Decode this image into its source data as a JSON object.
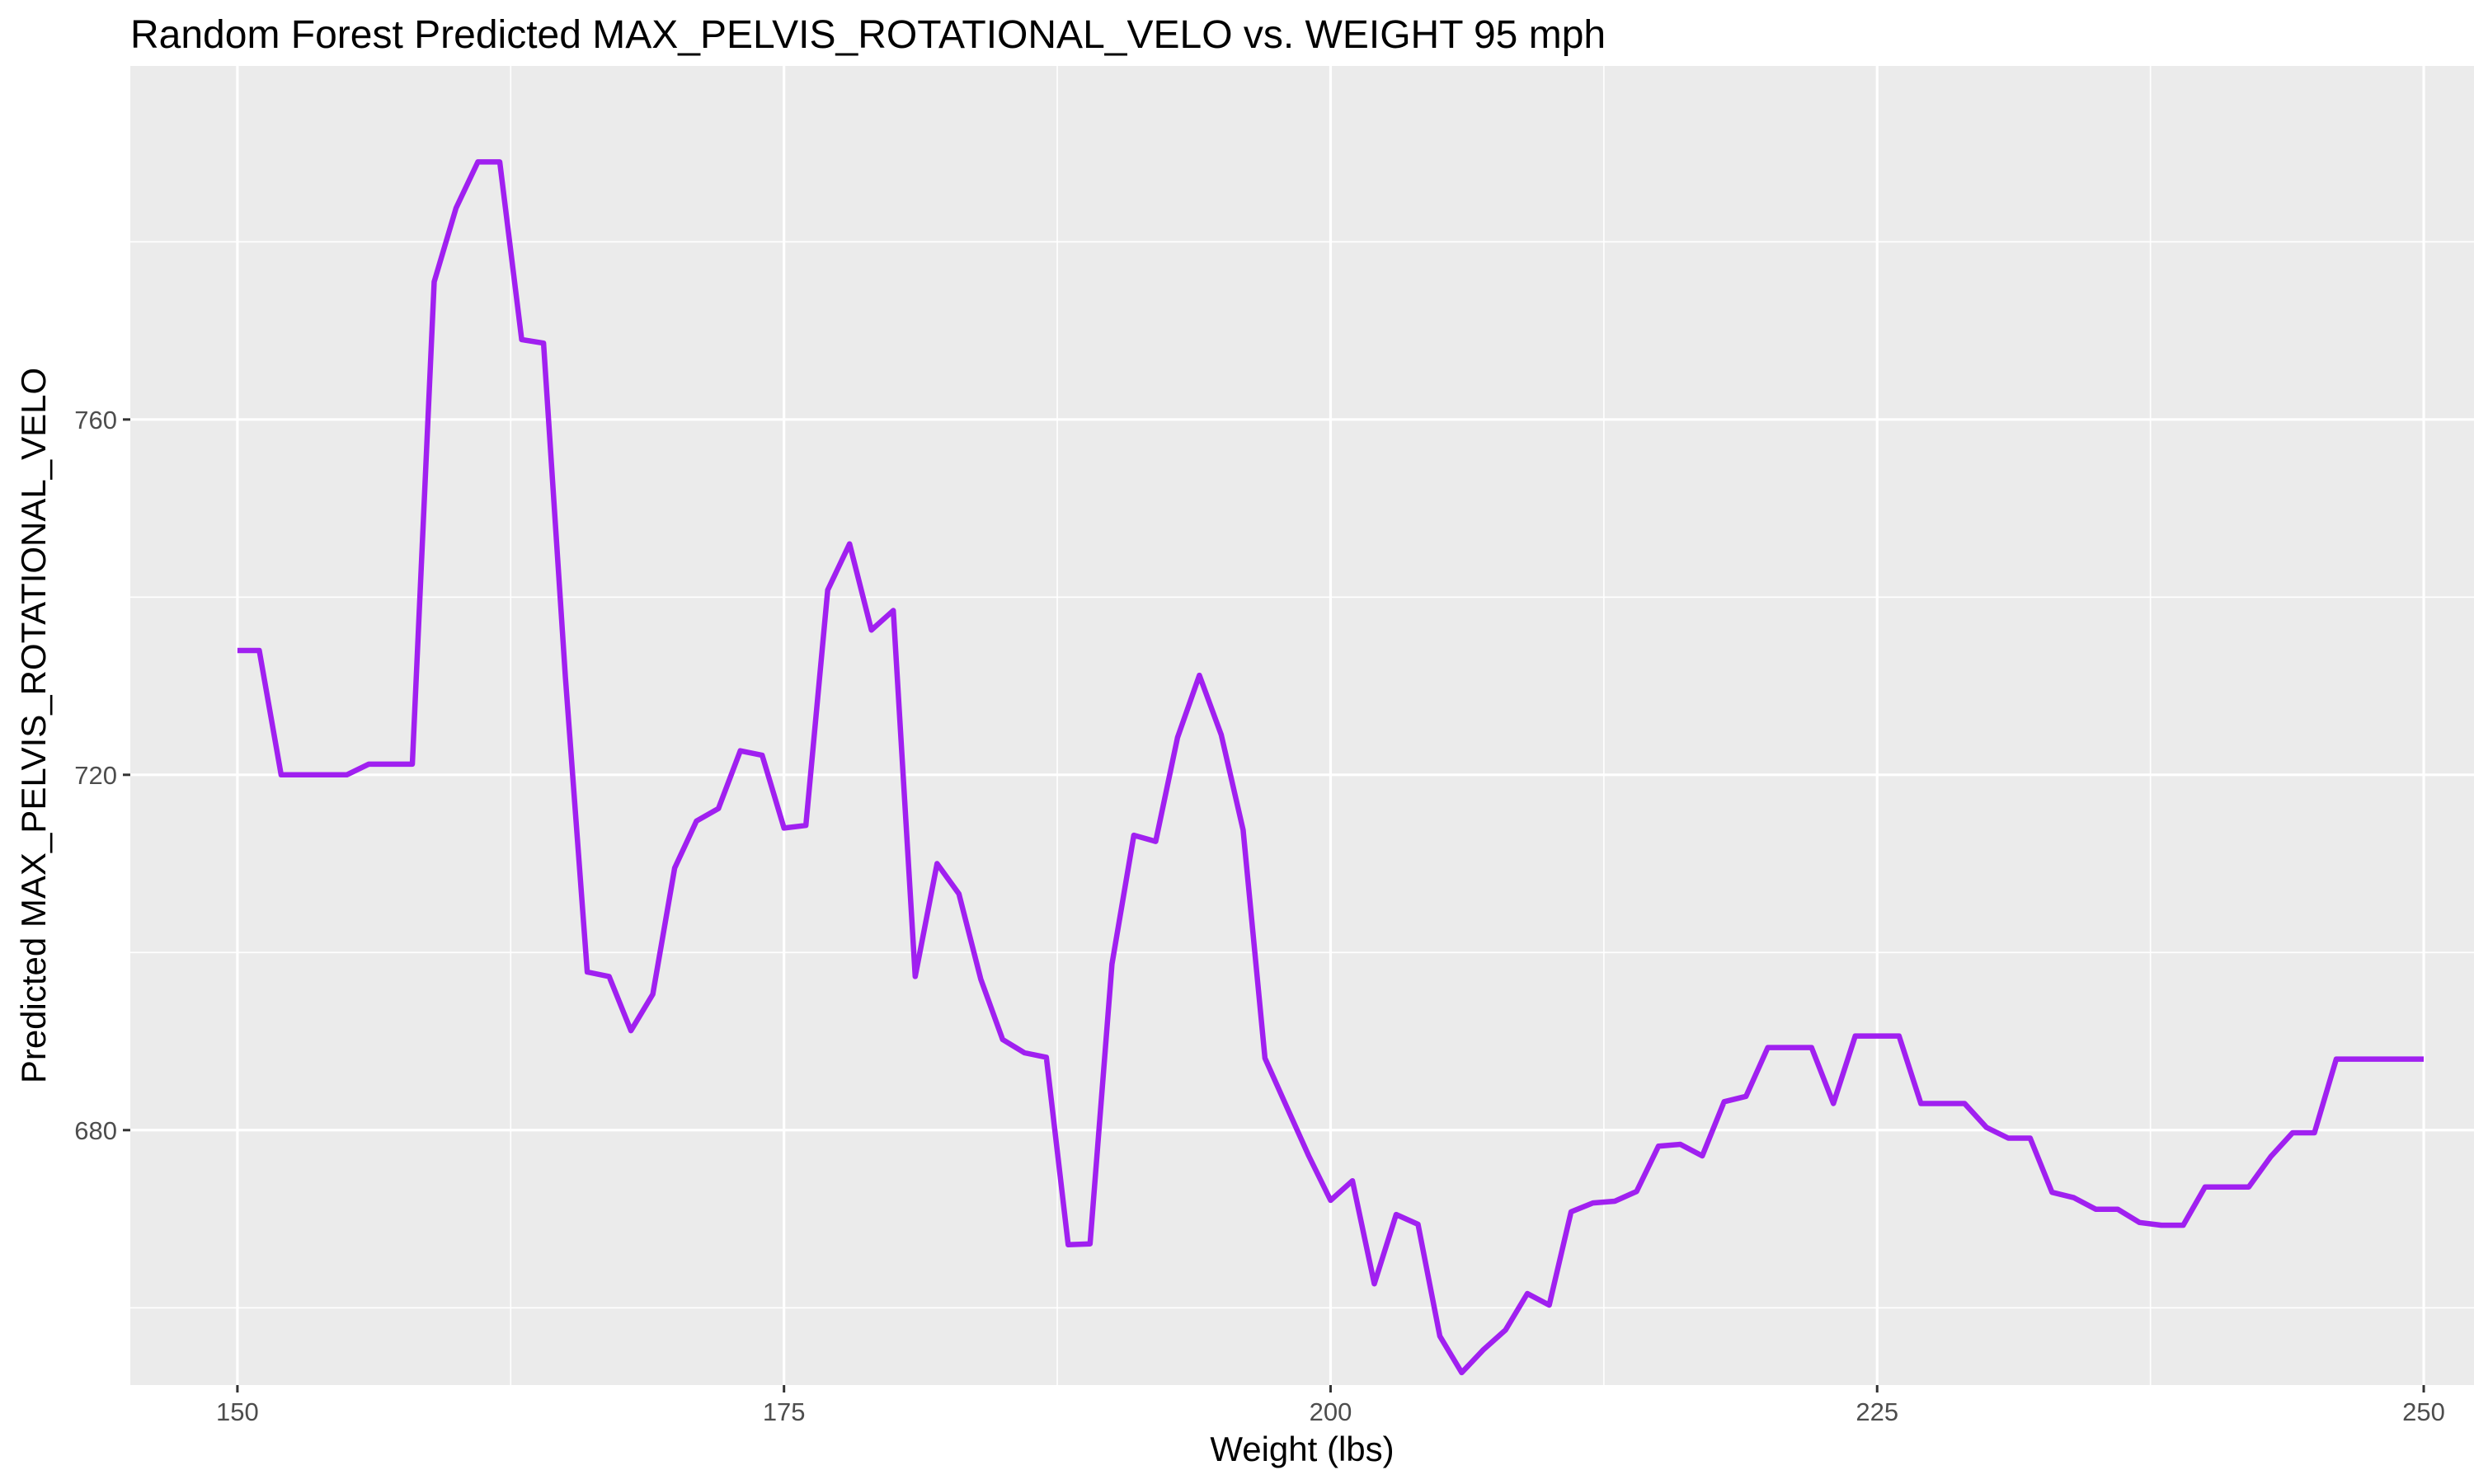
{
  "chart_data": {
    "type": "line",
    "title": "Random Forest Predicted MAX_PELVIS_ROTATIONAL_VELO vs. WEIGHT 95 mph",
    "xlabel": "Weight (lbs)",
    "ylabel": "Predicted MAX_PELVIS_ROTATIONAL_VELO",
    "xlim": [
      145.1,
      252.3
    ],
    "ylim": [
      651.3,
      799.8
    ],
    "x_ticks": [
      150,
      175,
      200,
      225,
      250
    ],
    "y_ticks": [
      680,
      720,
      760
    ],
    "grid": true,
    "legend": "none",
    "colors": {
      "panel_background": "#EBEBEB",
      "grid": "#FFFFFF",
      "line": "#A020F0",
      "tick_label": "#4D4D4D",
      "tick": "#333333",
      "text": "#000000"
    },
    "series": [
      {
        "x": [
          150,
          151,
          152,
          153,
          154,
          155,
          156,
          157,
          158,
          159,
          160,
          161,
          162,
          163,
          164,
          165,
          166,
          167,
          168,
          169,
          170,
          171,
          172,
          173,
          174,
          175,
          176,
          177,
          178,
          179,
          180,
          181,
          182,
          183,
          184,
          185,
          186,
          187,
          188,
          189,
          190,
          191,
          192,
          193,
          194,
          195,
          196,
          197,
          198,
          199,
          200,
          201,
          202,
          203,
          204,
          205,
          206,
          207,
          208,
          209,
          210,
          211,
          212,
          213,
          214,
          215,
          216,
          217,
          218,
          219,
          220,
          221,
          222,
          223,
          224,
          225,
          226,
          227,
          228,
          229,
          230,
          231,
          232,
          233,
          234,
          235,
          236,
          237,
          238,
          239,
          240,
          241,
          242,
          243,
          244,
          245,
          246,
          247,
          248,
          249,
          250
        ],
        "y": [
          734.0,
          734.0,
          720.0,
          720.0,
          720.0,
          720.0,
          721.2,
          721.2,
          721.2,
          775.5,
          783.8,
          789.0,
          789.0,
          769.0,
          768.6,
          731.0,
          697.8,
          697.3,
          691.2,
          695.3,
          709.5,
          714.8,
          716.2,
          722.7,
          722.2,
          714.0,
          714.3,
          740.8,
          746.0,
          736.3,
          738.5,
          697.3,
          710.0,
          706.6,
          697.0,
          690.2,
          688.7,
          688.2,
          667.1,
          667.2,
          698.7,
          713.2,
          712.5,
          724.2,
          731.2,
          724.5,
          713.8,
          688.1,
          682.6,
          677.1,
          672.1,
          674.3,
          662.7,
          670.5,
          669.4,
          656.8,
          652.7,
          655.3,
          657.5,
          661.6,
          660.3,
          670.8,
          671.8,
          672.0,
          673.1,
          678.2,
          678.4,
          677.1,
          683.2,
          683.8,
          689.3,
          689.3,
          689.3,
          683.0,
          690.6,
          690.6,
          690.6,
          683.0,
          683.0,
          683.0,
          680.3,
          679.1,
          679.1,
          673.0,
          672.4,
          671.1,
          671.1,
          669.6,
          669.3,
          669.3,
          673.6,
          673.6,
          673.6,
          677.0,
          679.7,
          679.7,
          688.0,
          688.0,
          688.0,
          688.0,
          688.0
        ]
      }
    ]
  }
}
